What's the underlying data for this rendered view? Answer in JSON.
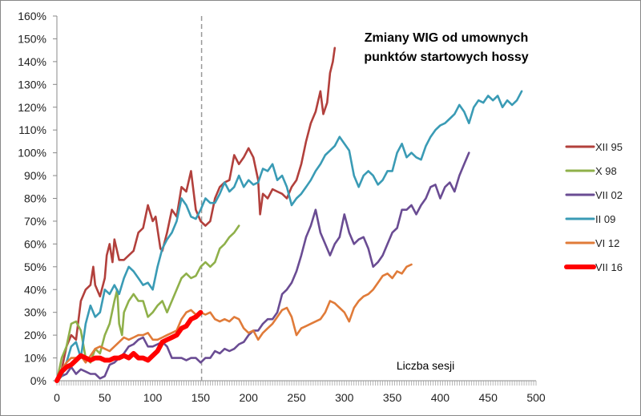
{
  "chart_data": {
    "type": "line",
    "title": [
      "Zmiany WIG od umownych",
      "punktów startowych hossy"
    ],
    "xlabel": "Liczba sesji",
    "ylabel": "",
    "xlim": [
      0,
      500
    ],
    "ylim": [
      0,
      160
    ],
    "xticks": [
      0,
      50,
      100,
      150,
      200,
      250,
      300,
      350,
      400,
      450,
      500
    ],
    "yticks": [
      0,
      10,
      20,
      30,
      40,
      50,
      60,
      70,
      80,
      90,
      100,
      110,
      120,
      130,
      140,
      150,
      160
    ],
    "ytick_labels": [
      "0%",
      "10%",
      "20%",
      "30%",
      "40%",
      "50%",
      "60%",
      "70%",
      "80%",
      "90%",
      "100%",
      "110%",
      "120%",
      "130%",
      "140%",
      "150%",
      "160%"
    ],
    "xtick_labels": [
      "0",
      "50",
      "100",
      "150",
      "200",
      "250",
      "300",
      "350",
      "400",
      "450",
      "500"
    ],
    "reference_line_x": 151,
    "legend_position": "right",
    "grid": false,
    "series": [
      {
        "name": "XII 95",
        "color": "#b2403c",
        "x": [
          0,
          5,
          10,
          15,
          20,
          25,
          30,
          35,
          38,
          40,
          45,
          50,
          52,
          55,
          58,
          60,
          65,
          70,
          75,
          80,
          85,
          90,
          95,
          100,
          103,
          108,
          110,
          115,
          120,
          125,
          130,
          135,
          140,
          145,
          150,
          155,
          160,
          165,
          170,
          175,
          180,
          185,
          190,
          195,
          200,
          205,
          210,
          212,
          215,
          220,
          225,
          230,
          235,
          240,
          245,
          250,
          255,
          260,
          265,
          270,
          275,
          278,
          282,
          285,
          288,
          290
        ],
        "y": [
          0,
          5,
          15,
          20,
          18,
          35,
          40,
          42,
          50,
          42,
          37,
          45,
          55,
          60,
          52,
          62,
          53,
          53,
          55,
          57,
          65,
          67,
          77,
          70,
          72,
          58,
          57,
          65,
          75,
          72,
          85,
          83,
          92,
          75,
          70,
          68,
          70,
          80,
          85,
          87,
          88,
          99,
          95,
          98,
          102,
          98,
          88,
          73,
          82,
          80,
          84,
          83,
          82,
          80,
          85,
          88,
          95,
          105,
          113,
          118,
          127,
          117,
          122,
          135,
          140,
          146
        ]
      },
      {
        "name": "X 98",
        "color": "#8fb04a",
        "x": [
          0,
          5,
          10,
          15,
          20,
          25,
          30,
          35,
          40,
          45,
          50,
          55,
          60,
          63,
          65,
          68,
          70,
          75,
          80,
          85,
          90,
          95,
          100,
          105,
          110,
          115,
          120,
          125,
          130,
          135,
          140,
          145,
          150,
          155,
          160,
          165,
          170,
          175,
          180,
          185,
          190
        ],
        "y": [
          0,
          10,
          15,
          25,
          26,
          22,
          10,
          8,
          14,
          12,
          20,
          25,
          35,
          40,
          25,
          20,
          30,
          35,
          38,
          35,
          35,
          28,
          30,
          33,
          35,
          30,
          35,
          40,
          45,
          47,
          45,
          46,
          50,
          52,
          50,
          52,
          58,
          60,
          63,
          65,
          68
        ]
      },
      {
        "name": "VII 02",
        "color": "#6a4c93",
        "x": [
          0,
          5,
          10,
          15,
          20,
          25,
          30,
          35,
          40,
          45,
          50,
          55,
          60,
          65,
          70,
          75,
          80,
          85,
          90,
          95,
          100,
          105,
          110,
          115,
          120,
          125,
          130,
          135,
          140,
          145,
          150,
          155,
          160,
          165,
          170,
          175,
          180,
          185,
          190,
          195,
          200,
          205,
          210,
          215,
          220,
          225,
          230,
          235,
          240,
          245,
          250,
          255,
          260,
          265,
          270,
          275,
          280,
          285,
          290,
          295,
          300,
          305,
          310,
          315,
          320,
          325,
          330,
          335,
          340,
          345,
          350,
          355,
          360,
          365,
          370,
          375,
          380,
          385,
          390,
          395,
          400,
          405,
          410,
          415,
          420,
          425,
          430
        ],
        "y": [
          0,
          2,
          3,
          6,
          3,
          5,
          4,
          3,
          3,
          1,
          2,
          7,
          8,
          10,
          12,
          15,
          16,
          18,
          19,
          15,
          15,
          16,
          17,
          15,
          10,
          10,
          10,
          9,
          10,
          10,
          8,
          10,
          10,
          13,
          12,
          14,
          13,
          14,
          16,
          17,
          20,
          22,
          22,
          25,
          27,
          27,
          30,
          38,
          40,
          43,
          48,
          55,
          63,
          68,
          75,
          65,
          60,
          55,
          60,
          63,
          73,
          65,
          60,
          62,
          63,
          58,
          50,
          52,
          55,
          60,
          65,
          67,
          75,
          75,
          77,
          73,
          77,
          80,
          85,
          86,
          80,
          85,
          87,
          83,
          90,
          95,
          100
        ]
      },
      {
        "name": "II 09",
        "color": "#3a9bb5",
        "x": [
          0,
          5,
          10,
          15,
          20,
          25,
          30,
          35,
          40,
          45,
          50,
          55,
          60,
          65,
          70,
          75,
          80,
          85,
          90,
          95,
          100,
          105,
          110,
          115,
          120,
          125,
          130,
          135,
          140,
          145,
          150,
          155,
          160,
          165,
          170,
          175,
          180,
          185,
          190,
          195,
          200,
          205,
          210,
          215,
          220,
          225,
          230,
          235,
          240,
          245,
          250,
          255,
          260,
          265,
          270,
          275,
          280,
          285,
          290,
          295,
          300,
          305,
          310,
          315,
          320,
          325,
          330,
          335,
          340,
          345,
          350,
          355,
          360,
          365,
          370,
          375,
          380,
          385,
          390,
          395,
          400,
          405,
          410,
          415,
          420,
          425,
          430,
          435,
          440,
          445,
          450,
          455,
          460,
          465,
          470,
          475,
          480,
          485
        ],
        "y": [
          0,
          2,
          8,
          15,
          17,
          10,
          25,
          33,
          28,
          30,
          40,
          38,
          42,
          38,
          45,
          50,
          48,
          45,
          42,
          43,
          40,
          50,
          58,
          62,
          65,
          70,
          80,
          77,
          72,
          71,
          75,
          80,
          78,
          78,
          82,
          87,
          83,
          85,
          90,
          85,
          88,
          86,
          87,
          93,
          92,
          95,
          88,
          90,
          85,
          77,
          80,
          82,
          85,
          88,
          92,
          95,
          99,
          101,
          103,
          107,
          104,
          101,
          90,
          85,
          90,
          92,
          90,
          86,
          88,
          92,
          92,
          100,
          104,
          98,
          100,
          98,
          97,
          103,
          107,
          110,
          112,
          113,
          115,
          117,
          121,
          118,
          113,
          120,
          123,
          122,
          125,
          123,
          125,
          120,
          123,
          121,
          123,
          127
        ]
      },
      {
        "name": "VI 12",
        "color": "#e07b39",
        "x": [
          0,
          5,
          10,
          15,
          20,
          25,
          30,
          35,
          40,
          45,
          50,
          55,
          60,
          65,
          70,
          75,
          80,
          85,
          90,
          95,
          100,
          105,
          110,
          115,
          120,
          125,
          130,
          135,
          140,
          145,
          150,
          155,
          160,
          165,
          170,
          175,
          180,
          185,
          190,
          195,
          200,
          205,
          210,
          215,
          220,
          225,
          230,
          235,
          240,
          245,
          250,
          255,
          260,
          265,
          270,
          275,
          280,
          285,
          290,
          295,
          300,
          305,
          310,
          315,
          320,
          325,
          330,
          335,
          340,
          345,
          350,
          355,
          360,
          365,
          370
        ],
        "y": [
          0,
          5,
          8,
          10,
          10,
          11,
          8,
          11,
          14,
          15,
          14,
          13,
          15,
          17,
          19,
          18,
          19,
          20,
          20,
          21,
          18,
          18,
          19,
          20,
          21,
          22,
          27,
          30,
          31,
          29,
          30,
          29,
          30,
          27,
          26,
          27,
          26,
          28,
          27,
          23,
          21,
          22,
          18,
          21,
          23,
          25,
          28,
          31,
          32,
          28,
          20,
          23,
          24,
          25,
          26,
          27,
          30,
          35,
          34,
          32,
          30,
          26,
          32,
          35,
          37,
          38,
          40,
          43,
          46,
          47,
          45,
          48,
          47,
          50,
          51
        ]
      },
      {
        "name": "VII 16",
        "color": "#ff0000",
        "x": [
          0,
          5,
          10,
          15,
          20,
          25,
          30,
          35,
          40,
          45,
          50,
          55,
          60,
          65,
          70,
          75,
          80,
          85,
          90,
          95,
          100,
          105,
          110,
          115,
          120,
          125,
          130,
          135,
          140,
          145,
          150
        ],
        "y": [
          0,
          4,
          6,
          7,
          9,
          11,
          10,
          9,
          10,
          10,
          9,
          9,
          10,
          10,
          11,
          10,
          12,
          10,
          10,
          9,
          11,
          13,
          17,
          18,
          19,
          20,
          23,
          24,
          27,
          28,
          30
        ]
      }
    ]
  }
}
